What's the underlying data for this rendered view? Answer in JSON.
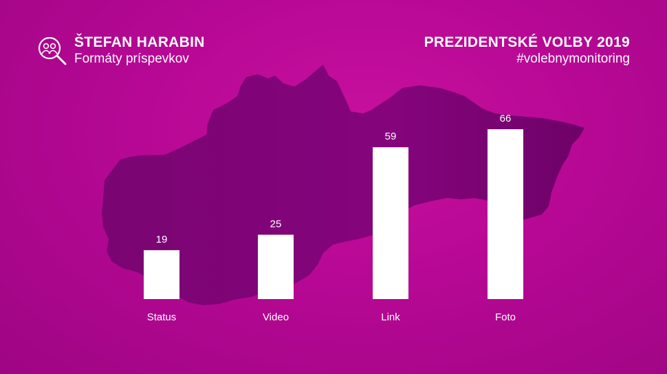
{
  "header": {
    "name": "ŠTEFAN HARABIN",
    "subtitle": "Formáty príspevkov",
    "event": "PREZIDENTSKÉ VOĽBY 2019",
    "hashtag": "#volebnymonitoring",
    "logo_icon": "magnifier-people-icon"
  },
  "colors": {
    "background": "#b60894",
    "map_fill": "#7d0477",
    "bar": "#ffffff",
    "text": "#ffffff"
  },
  "chart_data": {
    "type": "bar",
    "categories": [
      "Status",
      "Video",
      "Link",
      "Foto"
    ],
    "values": [
      19,
      25,
      59,
      66
    ],
    "title": "",
    "xlabel": "",
    "ylabel": "",
    "ylim": [
      0,
      66
    ],
    "grid": false,
    "data_labels": true
  }
}
